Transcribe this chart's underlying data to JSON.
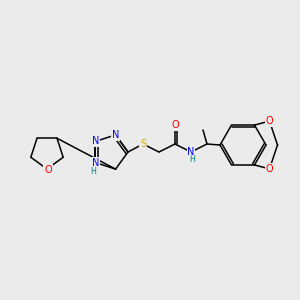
{
  "bg_color": "#ebebeb",
  "atom_colors": {
    "N": "#0000ff",
    "O": "#ff0000",
    "S": "#ccaa00",
    "C": "#000000",
    "H": "#008080"
  },
  "bond_color": "#000000",
  "bond_lw": 1.1,
  "font_size_atom": 7.0,
  "font_size_small": 5.8
}
